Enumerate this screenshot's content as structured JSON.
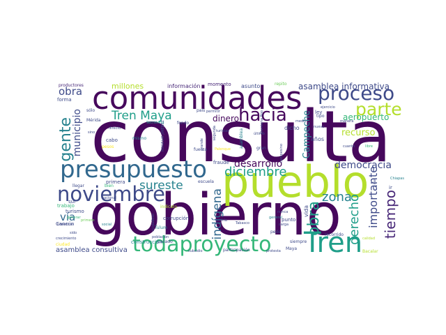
{
  "palette": {
    "dark_purple": "#46085c",
    "purple": "#482878",
    "indigo": "#3e4a89",
    "slate_blue": "#31688e",
    "teal_blue": "#26828e",
    "teal": "#1f9e89",
    "green": "#35b779",
    "light_green": "#6dcd59",
    "lime": "#b4de2c",
    "yellow": "#fde725"
  },
  "words": [
    {
      "text": "consulta"
    },
    {
      "text": "gobierno"
    },
    {
      "text": "pueblo"
    },
    {
      "text": "comunidades"
    },
    {
      "text": "presupuesto"
    },
    {
      "text": "Tren"
    },
    {
      "text": "todaproyecto"
    },
    {
      "text": "noviembre"
    },
    {
      "text": "proceso"
    },
    {
      "text": "parte"
    },
    {
      "text": "hacia"
    },
    {
      "text": "gente"
    },
    {
      "text": "Tren Maya"
    },
    {
      "text": "diciembre"
    },
    {
      "text": "zona"
    },
    {
      "text": "sureste"
    },
    {
      "text": "obra"
    },
    {
      "text": "vía"
    },
    {
      "text": "tiempo"
    },
    {
      "text": "derecho"
    },
    {
      "text": "indígena"
    },
    {
      "text": "importante"
    },
    {
      "text": "desarrollo"
    },
    {
      "text": "democracia"
    },
    {
      "text": "asamblea informativa"
    },
    {
      "text": "aeropuerto"
    },
    {
      "text": "recurso"
    },
    {
      "text": "municipio"
    },
    {
      "text": "dinero"
    },
    {
      "text": "Campeche"
    },
    {
      "text": "millones"
    },
    {
      "text": "asamblea consultiva"
    },
    {
      "text": "información"
    },
    {
      "text": "momento"
    },
    {
      "text": "asunto"
    },
    {
      "text": "repito"
    },
    {
      "text": "productores"
    },
    {
      "text": "forma"
    },
    {
      "text": "sólo"
    },
    {
      "text": "Mérida"
    },
    {
      "text": "cabo"
    },
    {
      "text": "pesos"
    },
    {
      "text": "mismo"
    },
    {
      "text": "fondo"
    },
    {
      "text": "Secretaría"
    },
    {
      "text": "país"
    },
    {
      "text": "permitir"
    },
    {
      "text": "turistas"
    },
    {
      "text": "segunda"
    },
    {
      "text": "grande"
    },
    {
      "text": "fuerza"
    },
    {
      "text": "Palenque"
    },
    {
      "text": "asamblea"
    },
    {
      "text": "último"
    },
    {
      "text": "Quintana Roo"
    },
    {
      "text": "dicho"
    },
    {
      "text": "años"
    },
    {
      "text": "ley"
    },
    {
      "text": "ejercicio"
    },
    {
      "text": "tipo"
    },
    {
      "text": "nuevo"
    },
    {
      "text": "medio"
    },
    {
      "text": "manera"
    },
    {
      "text": "cuanto"
    },
    {
      "text": "libre"
    },
    {
      "text": "ROGELIO JIMÉNEZ"
    },
    {
      "text": "Cancún"
    },
    {
      "text": "Tulum"
    },
    {
      "text": "construcción"
    },
    {
      "text": "pasado"
    },
    {
      "text": "fraude"
    },
    {
      "text": "escuela"
    },
    {
      "text": "primera"
    },
    {
      "text": "corrupción"
    },
    {
      "text": "llegar"
    },
    {
      "text": "bien"
    },
    {
      "text": "sur"
    },
    {
      "text": "trabajo"
    },
    {
      "text": "turismo"
    },
    {
      "text": "beneficio"
    },
    {
      "text": "sido"
    },
    {
      "text": "crecimiento"
    },
    {
      "text": "ciudad"
    },
    {
      "text": "población"
    },
    {
      "text": "subsidio"
    },
    {
      "text": "participación"
    },
    {
      "text": "protesta"
    },
    {
      "text": "Maya"
    },
    {
      "text": "Bacalar"
    },
    {
      "text": "Tabasco"
    },
    {
      "text": "podría"
    },
    {
      "text": "nunca"
    },
    {
      "text": "siempre"
    },
    {
      "text": "carga"
    },
    {
      "text": "general"
    },
    {
      "text": "pede"
    },
    {
      "text": "recorrido"
    },
    {
      "text": "punto"
    },
    {
      "text": "campesino"
    },
    {
      "text": "ir"
    },
    {
      "text": "Chiapas"
    },
    {
      "text": "dar"
    },
    {
      "text": "gran"
    },
    {
      "text": "social"
    },
    {
      "text": "nacional"
    },
    {
      "text": "indicato"
    },
    {
      "text": "primero"
    },
    {
      "text": "generar"
    },
    {
      "text": "directo"
    },
    {
      "text": "sino"
    },
    {
      "text": "vida"
    },
    {
      "text": "calidad"
    },
    {
      "text": "cuidadoso"
    }
  ]
}
